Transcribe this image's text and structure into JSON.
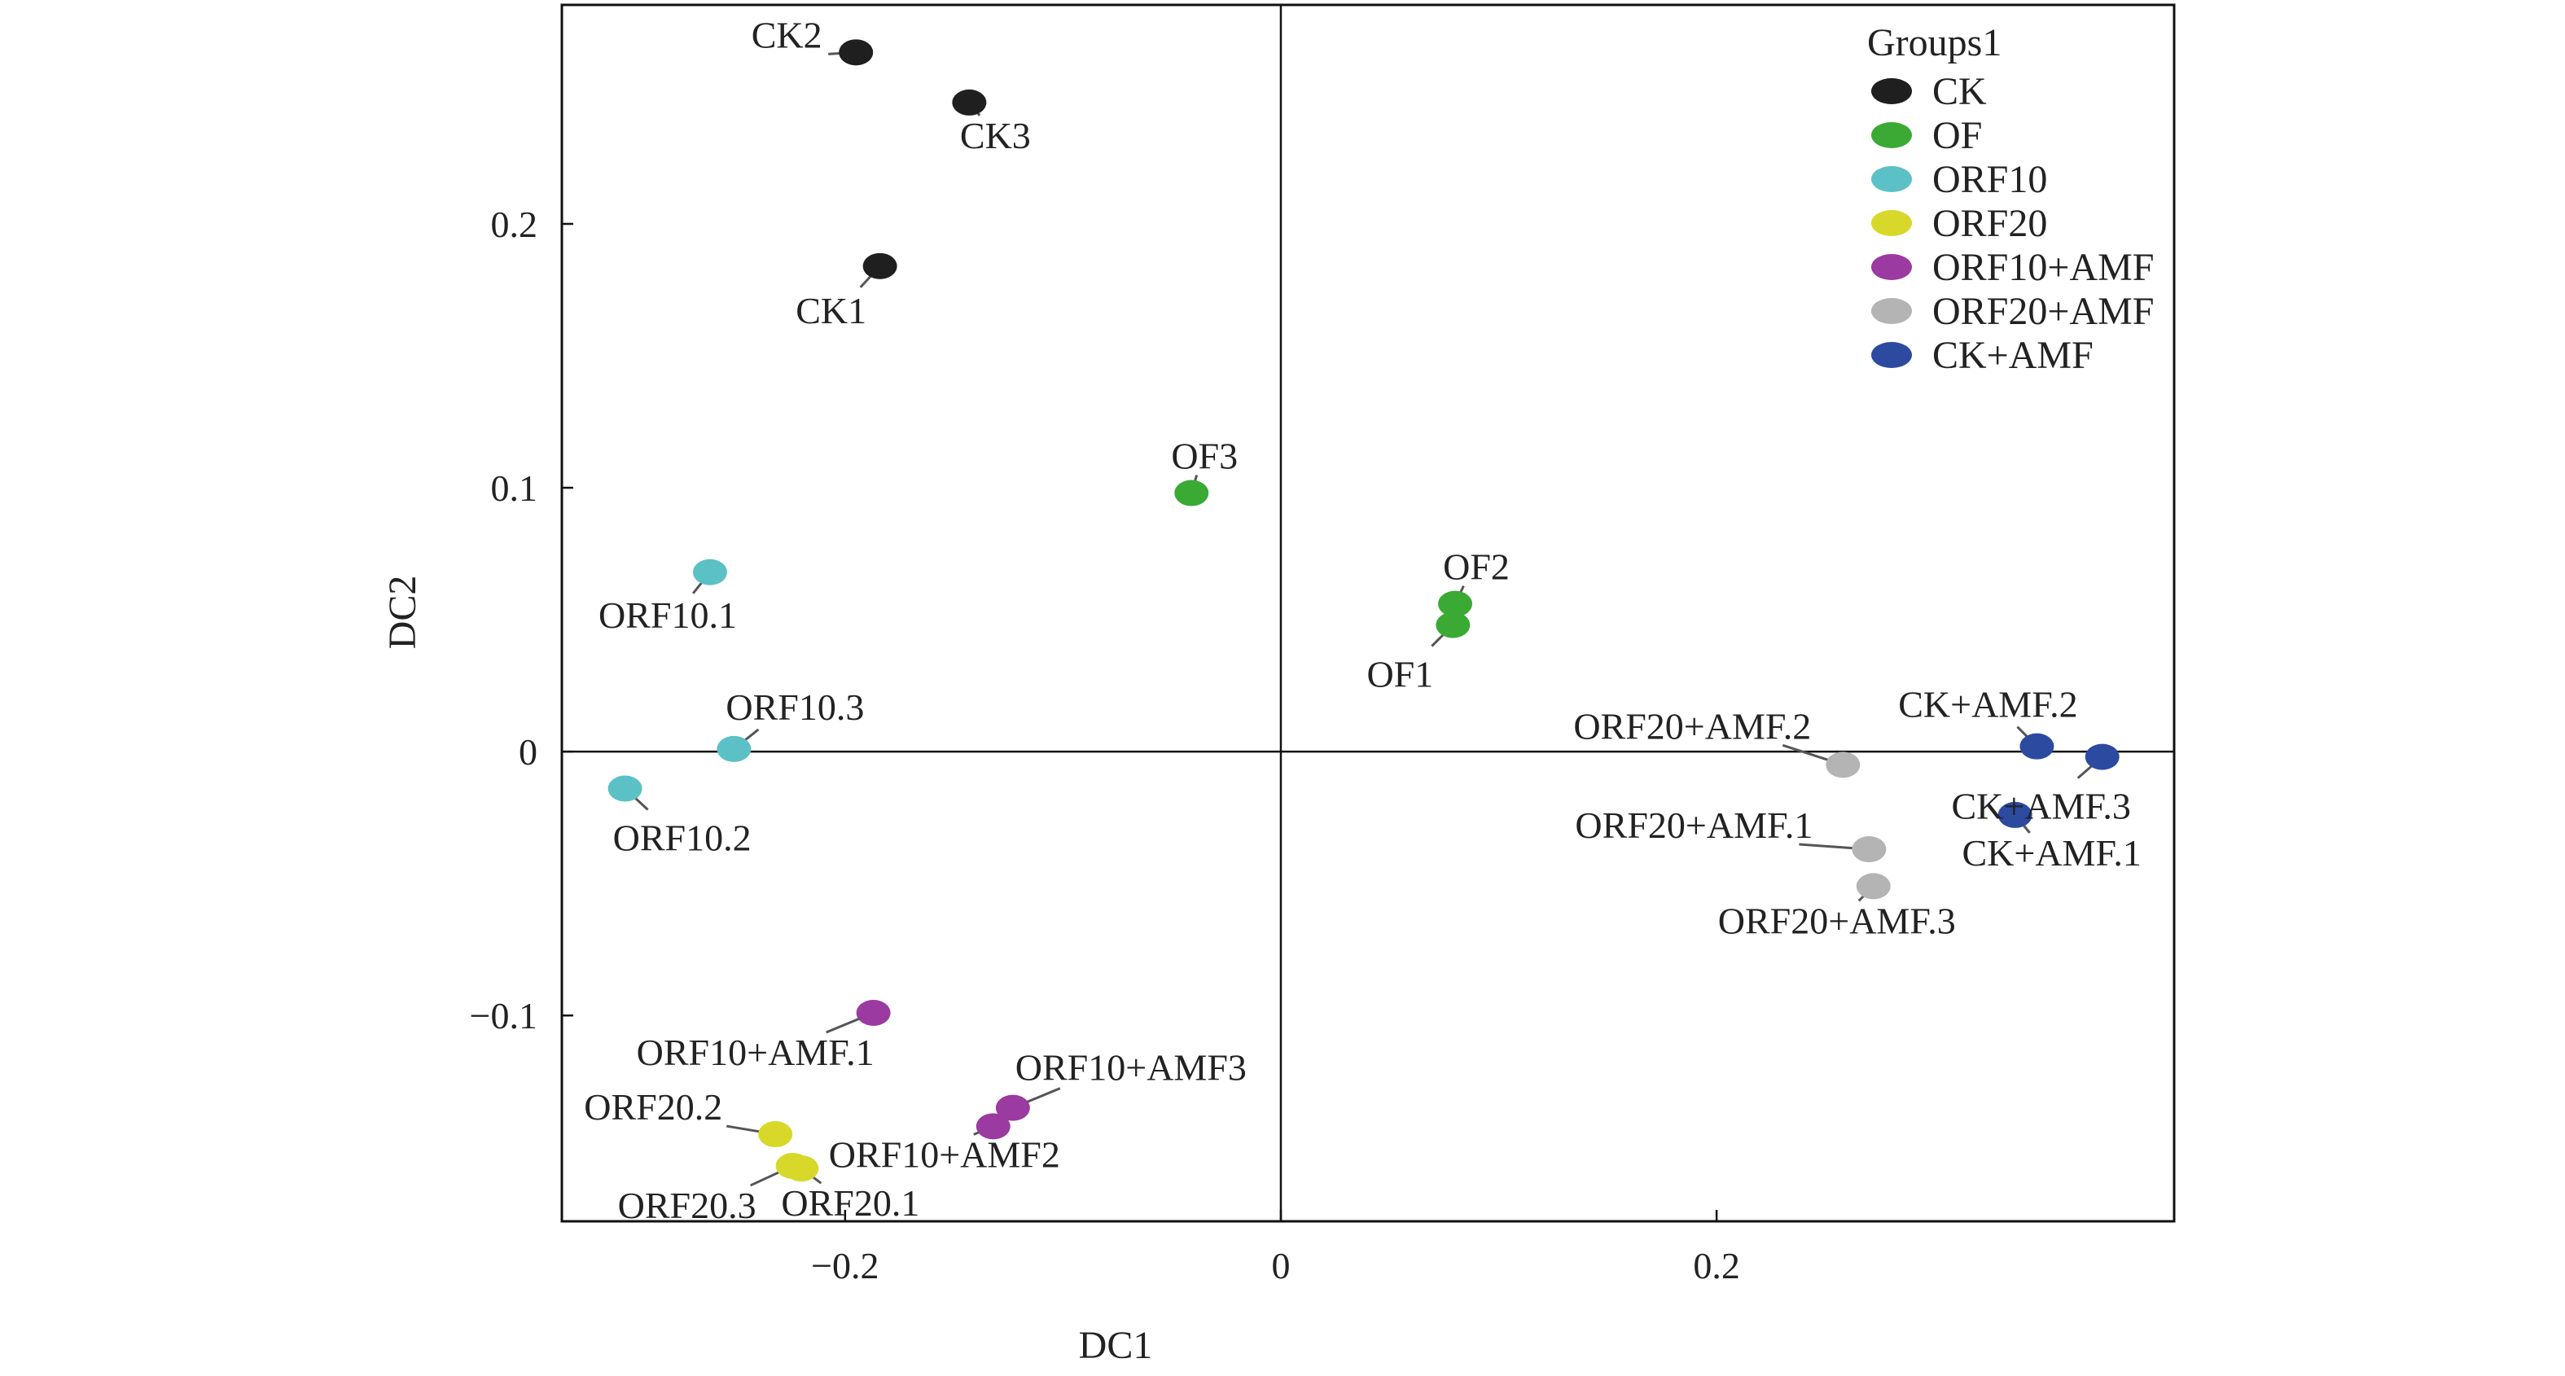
{
  "chart_data": {
    "type": "scatter",
    "xlabel": "DC1",
    "ylabel": "DC2",
    "xlim": [
      -0.33,
      0.41
    ],
    "ylim": [
      -0.178,
      0.283
    ],
    "xticks": [
      -0.2,
      0,
      0.2
    ],
    "xtick_labels": [
      "−0.2",
      "0",
      "0.2"
    ],
    "yticks": [
      -0.1,
      0,
      0.1,
      0.2
    ],
    "ytick_labels": [
      "−0.1",
      "0",
      "0.1",
      "0.2"
    ],
    "zero_lines": true,
    "grid": false,
    "legend": {
      "title": "Groups1",
      "position": "top-right"
    },
    "series": [
      {
        "name": "CK",
        "color": "#1f1f1f",
        "points": [
          {
            "label": "CK1",
            "x": -0.184,
            "y": 0.184
          },
          {
            "label": "CK2",
            "x": -0.195,
            "y": 0.265
          },
          {
            "label": "CK3",
            "x": -0.143,
            "y": 0.246
          }
        ]
      },
      {
        "name": "OF",
        "color": "#3aaa35",
        "points": [
          {
            "label": "OF1",
            "x": 0.079,
            "y": 0.048
          },
          {
            "label": "OF2",
            "x": 0.08,
            "y": 0.056
          },
          {
            "label": "OF3",
            "x": -0.041,
            "y": 0.098
          }
        ]
      },
      {
        "name": "ORF10",
        "color": "#5bc1c6",
        "points": [
          {
            "label": "ORF10.1",
            "x": -0.262,
            "y": 0.068
          },
          {
            "label": "ORF10.2",
            "x": -0.301,
            "y": -0.014
          },
          {
            "label": "ORF10.3",
            "x": -0.251,
            "y": 0.001
          }
        ]
      },
      {
        "name": "ORF20",
        "color": "#d8d82a",
        "points": [
          {
            "label": "ORF20.1",
            "x": -0.22,
            "y": -0.158
          },
          {
            "label": "ORF20.2",
            "x": -0.232,
            "y": -0.145
          },
          {
            "label": "ORF20.3",
            "x": -0.224,
            "y": -0.157
          }
        ]
      },
      {
        "name": "ORF10+AMF",
        "color": "#9b3aa0",
        "points": [
          {
            "label": "ORF10+AMF.1",
            "x": -0.187,
            "y": -0.099
          },
          {
            "label": "ORF10+AMF2",
            "x": -0.132,
            "y": -0.142
          },
          {
            "label": "ORF10+AMF3",
            "x": -0.123,
            "y": -0.135
          }
        ]
      },
      {
        "name": "ORF20+AMF",
        "color": "#b4b4b4",
        "points": [
          {
            "label": "ORF20+AMF.1",
            "x": 0.27,
            "y": -0.037
          },
          {
            "label": "ORF20+AMF.2",
            "x": 0.258,
            "y": -0.005
          },
          {
            "label": "ORF20+AMF.3",
            "x": 0.272,
            "y": -0.051
          }
        ]
      },
      {
        "name": "CK+AMF",
        "color": "#2c4aa0",
        "points": [
          {
            "label": "CK+AMF.1",
            "x": 0.337,
            "y": -0.024
          },
          {
            "label": "CK+AMF.2",
            "x": 0.347,
            "y": 0.002
          },
          {
            "label": "CK+AMF.3",
            "x": 0.377,
            "y": -0.002
          }
        ]
      }
    ]
  }
}
